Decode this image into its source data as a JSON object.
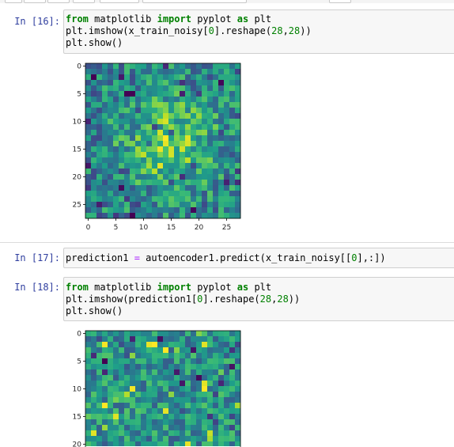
{
  "cells": [
    {
      "prompt": "In [16]:",
      "code_lines": [
        [
          {
            "t": "from",
            "c": "kw"
          },
          {
            "t": " matplotlib ",
            "c": ""
          },
          {
            "t": "import",
            "c": "kw"
          },
          {
            "t": " pyplot ",
            "c": ""
          },
          {
            "t": "as",
            "c": "kw"
          },
          {
            "t": " plt",
            "c": ""
          }
        ],
        [
          {
            "t": "plt.imshow(x_train_noisy[",
            "c": ""
          },
          {
            "t": "0",
            "c": "nm"
          },
          {
            "t": "].reshape(",
            "c": ""
          },
          {
            "t": "28",
            "c": "nm"
          },
          {
            "t": ",",
            "c": ""
          },
          {
            "t": "28",
            "c": "nm"
          },
          {
            "t": "))",
            "c": ""
          }
        ],
        [
          {
            "t": "plt.show()",
            "c": ""
          }
        ]
      ]
    },
    {
      "prompt": "In [17]:",
      "code_lines": [
        [
          {
            "t": "prediction1 ",
            "c": ""
          },
          {
            "t": "=",
            "c": "op"
          },
          {
            "t": " autoencoder1.predict(x_train_noisy[[",
            "c": ""
          },
          {
            "t": "0",
            "c": "nm"
          },
          {
            "t": "],:])",
            "c": ""
          }
        ]
      ]
    },
    {
      "prompt": "In [18]:",
      "code_lines": [
        [
          {
            "t": "from",
            "c": "kw"
          },
          {
            "t": " matplotlib ",
            "c": ""
          },
          {
            "t": "import",
            "c": "kw"
          },
          {
            "t": " pyplot ",
            "c": ""
          },
          {
            "t": "as",
            "c": "kw"
          },
          {
            "t": " plt",
            "c": ""
          }
        ],
        [
          {
            "t": "plt.imshow(prediction1[",
            "c": ""
          },
          {
            "t": "0",
            "c": "nm"
          },
          {
            "t": "].reshape(",
            "c": ""
          },
          {
            "t": "28",
            "c": "nm"
          },
          {
            "t": ",",
            "c": ""
          },
          {
            "t": "28",
            "c": "nm"
          },
          {
            "t": "))",
            "c": ""
          }
        ],
        [
          {
            "t": "plt.show()",
            "c": ""
          }
        ]
      ]
    }
  ],
  "chart_data": [
    {
      "type": "heatmap",
      "title": "",
      "grid_size": [
        28,
        28
      ],
      "colormap": "viridis",
      "x_ticks": [
        "0",
        "5",
        "10",
        "15",
        "20",
        "25"
      ],
      "y_ticks": [
        "0",
        "5",
        "10",
        "15",
        "20",
        "25"
      ],
      "xlim": [
        -0.5,
        27.5
      ],
      "ylim": [
        27.5,
        -0.5
      ],
      "visible_rows": [
        0,
        27
      ],
      "seed": 16
    },
    {
      "type": "heatmap",
      "title": "",
      "grid_size": [
        28,
        28
      ],
      "colormap": "viridis",
      "x_ticks": [],
      "y_ticks": [
        "0",
        "5",
        "10",
        "15",
        "20"
      ],
      "xlim": [
        -0.5,
        27.5
      ],
      "ylim": [
        27.5,
        -0.5
      ],
      "visible_rows": [
        0,
        20
      ],
      "seed": 18
    }
  ]
}
